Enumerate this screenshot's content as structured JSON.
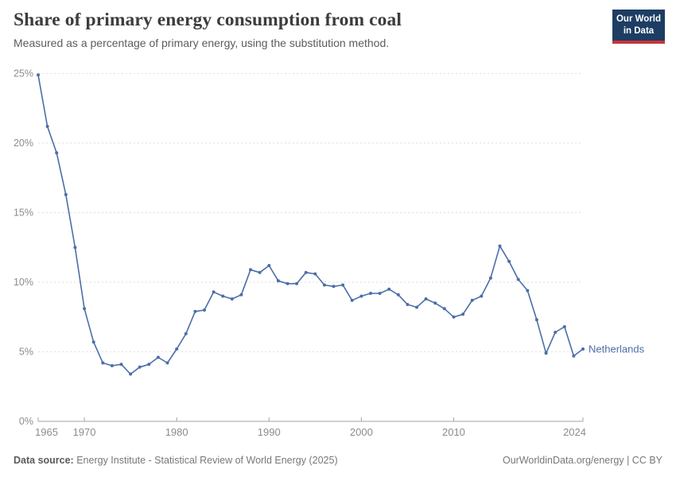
{
  "header": {
    "title": "Share of primary energy consumption from coal",
    "subtitle": "Measured as a percentage of primary energy, using the substitution method."
  },
  "logo": {
    "line1": "Our World",
    "line2": "in Data",
    "bg_color": "#1d3d63",
    "bar_color": "#c5353a",
    "text_color": "#ffffff"
  },
  "footer": {
    "source_label": "Data source:",
    "source_text": "Energy Institute - Statistical Review of World Energy (2025)",
    "right_text": "OurWorldinData.org/energy | CC BY"
  },
  "chart_data": {
    "type": "line",
    "title": "Share of primary energy consumption from coal",
    "xlabel": "",
    "ylabel": "",
    "xlim": [
      1965,
      2024
    ],
    "ylim": [
      0,
      25
    ],
    "grid": "horizontal-dashed",
    "legend_position": "end-of-line-label",
    "entity_label": "Netherlands",
    "colors": {
      "line": "#4c6ea8",
      "grid": "#dedede",
      "axis": "#a3a3a3",
      "tick_text": "#8c8c8c"
    },
    "x_ticks": [
      1965,
      1970,
      1980,
      1990,
      2000,
      2010,
      2024
    ],
    "y_ticks": [
      {
        "value": 0,
        "label": "0%"
      },
      {
        "value": 5,
        "label": "5%"
      },
      {
        "value": 10,
        "label": "10%"
      },
      {
        "value": 15,
        "label": "15%"
      },
      {
        "value": 20,
        "label": "20%"
      },
      {
        "value": 25,
        "label": "25%"
      }
    ],
    "x": [
      1965,
      1966,
      1967,
      1968,
      1969,
      1970,
      1971,
      1972,
      1973,
      1974,
      1975,
      1976,
      1977,
      1978,
      1979,
      1980,
      1981,
      1982,
      1983,
      1984,
      1985,
      1986,
      1987,
      1988,
      1989,
      1990,
      1991,
      1992,
      1993,
      1994,
      1995,
      1996,
      1997,
      1998,
      1999,
      2000,
      2001,
      2002,
      2003,
      2004,
      2005,
      2006,
      2007,
      2008,
      2009,
      2010,
      2011,
      2012,
      2013,
      2014,
      2015,
      2016,
      2017,
      2018,
      2019,
      2020,
      2021,
      2022,
      2023,
      2024
    ],
    "series": [
      {
        "name": "Netherlands",
        "color": "#4c6ea8",
        "values": [
          24.9,
          21.2,
          19.3,
          16.3,
          12.5,
          8.1,
          5.7,
          4.2,
          4.0,
          4.1,
          3.4,
          3.9,
          4.1,
          4.6,
          4.2,
          5.2,
          6.3,
          7.9,
          8.0,
          9.3,
          9.0,
          8.8,
          9.1,
          10.9,
          10.7,
          11.2,
          10.1,
          9.9,
          9.9,
          10.7,
          10.6,
          9.8,
          9.7,
          9.8,
          8.7,
          9.0,
          9.2,
          9.2,
          9.5,
          9.1,
          8.4,
          8.2,
          8.8,
          8.5,
          8.1,
          7.5,
          7.7,
          8.7,
          9.0,
          10.3,
          12.6,
          11.5,
          10.2,
          9.4,
          7.3,
          4.9,
          6.4,
          6.8,
          4.7,
          5.2
        ]
      }
    ]
  }
}
